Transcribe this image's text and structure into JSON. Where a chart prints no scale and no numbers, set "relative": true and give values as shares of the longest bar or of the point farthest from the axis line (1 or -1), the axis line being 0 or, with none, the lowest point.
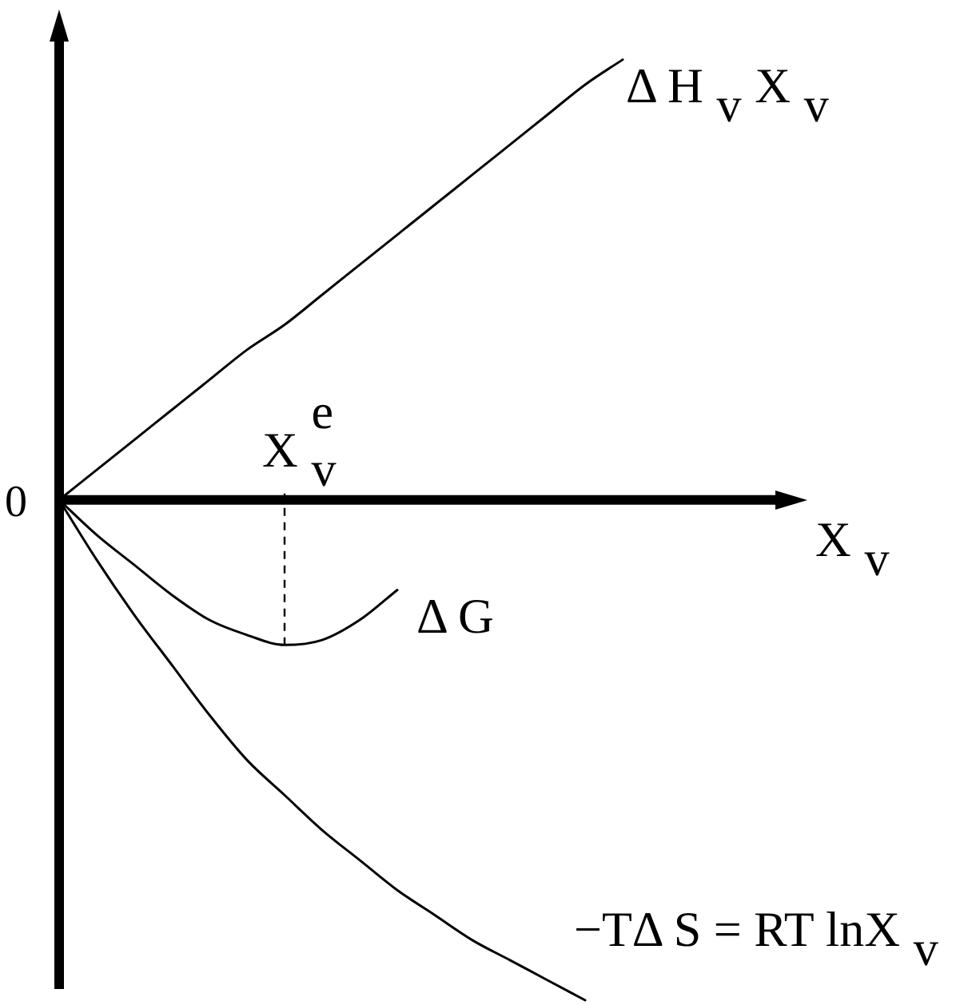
{
  "chart_data": {
    "type": "line",
    "relative": true,
    "categories": [
      null,
      null,
      null,
      null,
      null,
      null,
      null,
      null,
      null,
      null,
      null,
      null,
      null,
      null,
      null,
      null,
      null,
      null,
      null,
      null,
      null
    ],
    "xlabel": "X$_{v}$",
    "series": [
      {
        "name": "Δ H$_{v}$X$_{v}$",
        "color": "#000000",
        "values": [
          0,
          0.06,
          0.12,
          0.18,
          0.24,
          0.3,
          0.35,
          0.41,
          0.47,
          0.53,
          0.59,
          0.65,
          0.71,
          0.77,
          0.83,
          0.88,
          null,
          null,
          null,
          null,
          null
        ]
      },
      {
        "name": "Δ G",
        "color": "#000000",
        "values": [
          0,
          -0.07,
          -0.13,
          -0.19,
          -0.24,
          -0.27,
          -0.29,
          -0.28,
          -0.24,
          -0.18,
          null,
          null,
          null,
          null,
          null,
          null,
          null,
          null,
          null,
          null,
          null
        ]
      },
      {
        "name": "−TΔ S = RT lnX$_{v}$",
        "color": "#000000",
        "values": [
          0,
          -0.12,
          -0.23,
          -0.33,
          -0.43,
          -0.52,
          -0.59,
          -0.66,
          -0.72,
          -0.78,
          -0.83,
          -0.88,
          -0.92,
          -0.96,
          -1,
          null,
          null,
          null,
          null,
          null,
          null
        ]
      }
    ],
    "annotations": [
      "0",
      "X$_{v}$$^{e}$"
    ],
    "legend": false,
    "marker": "none",
    "grid": false
  }
}
